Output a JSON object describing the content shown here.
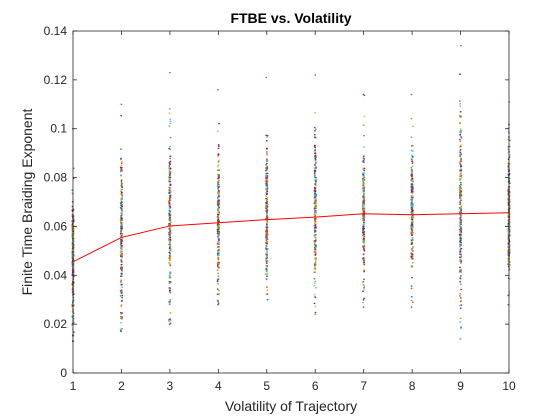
{
  "chart_data": {
    "type": "scatter",
    "title": "FTBE vs. Volatility",
    "xlabel": "Volatility of Trajectory",
    "ylabel": "Finite Time Braiding Exponent",
    "xlim": [
      1,
      10
    ],
    "ylim": [
      0,
      0.14
    ],
    "xticks": [
      "1",
      "2",
      "3",
      "4",
      "5",
      "6",
      "7",
      "8",
      "9",
      "10"
    ],
    "yticks": [
      "0",
      "0.02",
      "0.04",
      "0.06",
      "0.08",
      "0.1",
      "0.12",
      "0.14"
    ],
    "grid": false,
    "legend": "none",
    "series": [
      {
        "kind": "line",
        "color": "#ff0000",
        "x": [
          1,
          2,
          3,
          4,
          5,
          6,
          7,
          8,
          9,
          10
        ],
        "y": [
          0.0455,
          0.0555,
          0.0602,
          0.0615,
          0.0628,
          0.0638,
          0.0652,
          0.0648,
          0.0652,
          0.0656
        ]
      },
      {
        "kind": "scatter",
        "marker": "dot",
        "colors": [
          "#0072bd",
          "#d95319",
          "#edb120",
          "#7e2f8e",
          "#77ac30",
          "#4dbeee",
          "#a2142f"
        ],
        "x": [
          1,
          2,
          3,
          4,
          5,
          6,
          7,
          8,
          9,
          10
        ],
        "ymin": [
          0.013,
          0.017,
          0.02,
          0.028,
          0.03,
          0.024,
          0.027,
          0.027,
          0.014,
          0.028
        ],
        "ymax": [
          0.1,
          0.11,
          0.123,
          0.116,
          0.121,
          0.122,
          0.114,
          0.114,
          0.134,
          0.111
        ]
      }
    ]
  }
}
